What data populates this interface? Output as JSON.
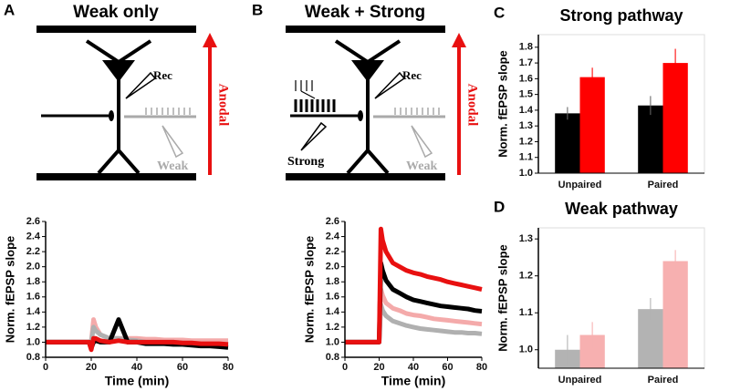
{
  "panel_labels": [
    "A",
    "B",
    "C",
    "D"
  ],
  "diagrams": [
    {
      "title": "Weak only",
      "rec": "Rec",
      "weak": "Weak",
      "anodal": "Anodal"
    },
    {
      "title": "Weak + Strong",
      "rec": "Rec",
      "weak": "Weak",
      "anodal": "Anodal",
      "strong": "Strong"
    }
  ],
  "chart_data": [
    {
      "type": "line",
      "x_label": "Time (min)",
      "y_label": "Norm. fEPSP slope",
      "x": [
        0,
        4,
        8,
        12,
        16,
        19,
        20,
        21,
        22,
        24,
        28,
        32,
        36,
        40,
        44,
        48,
        52,
        56,
        60,
        64,
        68,
        72,
        76,
        80
      ],
      "xlim": [
        0,
        80
      ],
      "xticks": [
        0,
        20,
        40,
        60,
        80
      ],
      "ylim": [
        0.8,
        2.6
      ],
      "yticks": [
        0.8,
        {
          "value": 1,
          "label": "1.0"
        },
        1.2,
        1.4,
        1.6,
        1.8,
        {
          "value": 2,
          "label": "2.0"
        },
        2.2,
        2.4,
        2.6
      ],
      "series": [
        {
          "color": "#f4aaaa",
          "values": [
            1.0,
            1.0,
            1.0,
            1.0,
            1.0,
            1.0,
            1.0,
            1.3,
            1.2,
            1.1,
            1.05,
            1.05,
            1.05,
            1.05,
            1.04,
            1.04,
            1.03,
            1.03,
            1.03,
            1.02,
            1.02,
            1.02,
            1.02,
            1.02
          ]
        },
        {
          "color": "#b0b0b0",
          "values": [
            1.0,
            1.0,
            1.0,
            1.0,
            1.0,
            1.0,
            1.0,
            1.2,
            1.15,
            1.1,
            1.05,
            1.05,
            1.03,
            1.02,
            1.0,
            1.0,
            1.0,
            1.0,
            0.99,
            0.98,
            0.97,
            0.97,
            0.96,
            0.95
          ]
        },
        {
          "color": "#000000",
          "values": [
            1.0,
            1.0,
            1.0,
            1.0,
            1.0,
            1.0,
            0.92,
            1.0,
            1.02,
            1.0,
            1.0,
            1.3,
            1.0,
            1.0,
            0.98,
            0.98,
            0.98,
            0.97,
            0.97,
            0.96,
            0.95,
            0.95,
            0.94,
            0.93
          ]
        },
        {
          "color": "#e81010",
          "values": [
            1.0,
            1.0,
            1.0,
            1.0,
            1.0,
            1.0,
            0.9,
            1.05,
            1.05,
            1.02,
            1.0,
            1.02,
            1.0,
            1.0,
            1.0,
            1.0,
            1.0,
            1.0,
            0.99,
            0.99,
            0.98,
            0.98,
            0.98,
            0.97
          ]
        }
      ]
    },
    {
      "type": "line",
      "x_label": "Time (min)",
      "y_label": "Norm. fEPSP slope",
      "x": [
        0,
        4,
        8,
        12,
        16,
        19,
        20,
        21,
        22,
        24,
        28,
        32,
        36,
        40,
        44,
        48,
        52,
        56,
        60,
        64,
        68,
        72,
        76,
        80
      ],
      "xlim": [
        0,
        80
      ],
      "xticks": [
        0,
        20,
        40,
        60,
        80
      ],
      "ylim": [
        0.8,
        2.6
      ],
      "yticks": [
        0.8,
        {
          "value": 1,
          "label": "1.0"
        },
        1.2,
        1.4,
        1.6,
        1.8,
        {
          "value": 2,
          "label": "2.0"
        },
        2.2,
        2.4,
        2.6
      ],
      "series": [
        {
          "color": "#b0b0b0",
          "values": [
            1.0,
            1.0,
            1.0,
            1.0,
            1.0,
            1.0,
            1.0,
            1.5,
            1.42,
            1.35,
            1.28,
            1.25,
            1.22,
            1.2,
            1.18,
            1.17,
            1.16,
            1.15,
            1.14,
            1.13,
            1.13,
            1.12,
            1.12,
            1.11
          ]
        },
        {
          "color": "#f4aaaa",
          "values": [
            1.0,
            1.0,
            1.0,
            1.0,
            1.0,
            1.0,
            1.0,
            1.7,
            1.62,
            1.52,
            1.45,
            1.42,
            1.38,
            1.36,
            1.35,
            1.33,
            1.31,
            1.3,
            1.29,
            1.28,
            1.27,
            1.26,
            1.25,
            1.24
          ]
        },
        {
          "color": "#000000",
          "values": [
            1.0,
            1.0,
            1.0,
            1.0,
            1.0,
            1.0,
            1.0,
            2.05,
            1.95,
            1.82,
            1.7,
            1.65,
            1.6,
            1.56,
            1.54,
            1.52,
            1.5,
            1.48,
            1.47,
            1.46,
            1.45,
            1.44,
            1.42,
            1.41
          ]
        },
        {
          "color": "#e81010",
          "values": [
            1.0,
            1.0,
            1.0,
            1.0,
            1.0,
            1.0,
            1.0,
            2.5,
            2.35,
            2.2,
            2.05,
            2.0,
            1.95,
            1.92,
            1.9,
            1.87,
            1.85,
            1.83,
            1.8,
            1.78,
            1.76,
            1.74,
            1.72,
            1.7
          ]
        }
      ]
    },
    {
      "type": "bar",
      "title": "Strong pathway",
      "y_label": "Norm. fEPSP slope",
      "categories": [
        "Unpaired",
        "Paired"
      ],
      "ylim": [
        1.0,
        1.88
      ],
      "yticks": [
        {
          "value": 1,
          "label": "1.0"
        },
        1.1,
        1.2,
        1.3,
        1.4,
        1.5,
        1.6,
        1.7,
        1.8
      ],
      "series": [
        {
          "color": "#000000",
          "values": [
            1.38,
            1.43
          ],
          "errors": [
            0.04,
            0.06
          ]
        },
        {
          "color": "#ff0000",
          "values": [
            1.61,
            1.7
          ],
          "errors": [
            0.06,
            0.09
          ]
        }
      ]
    },
    {
      "type": "bar",
      "title": "Weak pathway",
      "y_label": "Norm. fEPSP slope",
      "categories": [
        "Unpaired",
        "Paired"
      ],
      "ylim": [
        0.95,
        1.33
      ],
      "yticks": [
        {
          "value": 1,
          "label": "1.0"
        },
        1.1,
        1.2,
        1.3
      ],
      "series": [
        {
          "color": "#b3b3b3",
          "values": [
            1.0,
            1.11
          ],
          "errors": [
            0.04,
            0.03
          ]
        },
        {
          "color": "#f7b0b0",
          "values": [
            1.04,
            1.24
          ],
          "errors": [
            0.035,
            0.03
          ]
        }
      ]
    }
  ]
}
